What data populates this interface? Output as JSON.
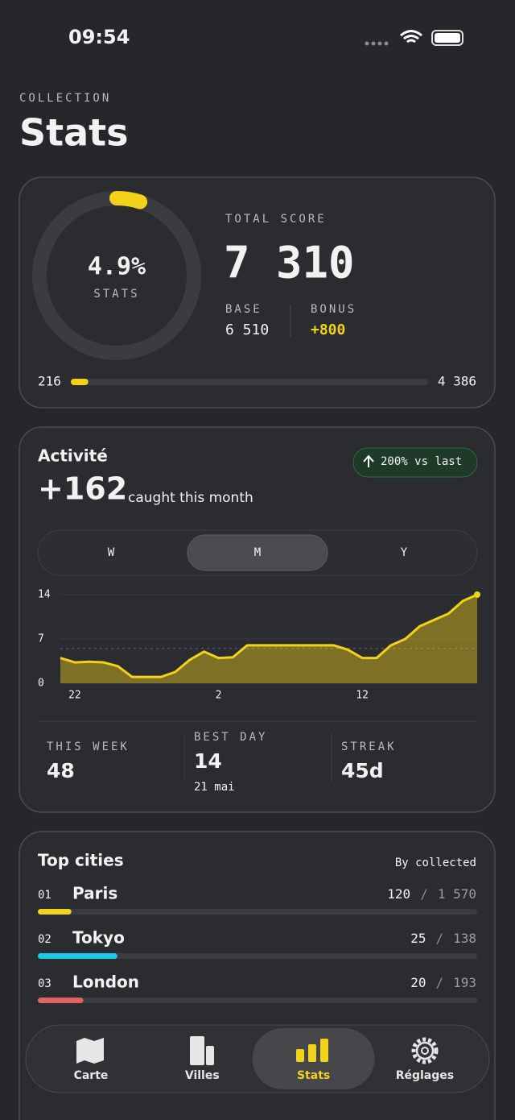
{
  "status": {
    "time": "09:54"
  },
  "header": {
    "eyebrow": "COLLECTION",
    "title": "Stats"
  },
  "score": {
    "progress": {
      "value": 4.9,
      "label": "4.9%"
    },
    "ring_label": "STATS",
    "total_label": "TOTAL SCORE",
    "total": "7 310",
    "base_label": "BASE",
    "base": "6 510",
    "bonus_label": "BONUS",
    "bonus": "+800",
    "range_min": "216",
    "range_max": "4 386"
  },
  "activity": {
    "title": "Activité",
    "count": "+162",
    "caption": "caught this month",
    "badge": "200% vs last",
    "tabs": {
      "items": [
        "W",
        "M",
        "Y"
      ],
      "active": 1
    },
    "chart": {
      "type": "area",
      "categories": [
        null,
        "22",
        null,
        null,
        null,
        null,
        null,
        null,
        null,
        null,
        null,
        "2",
        null,
        null,
        null,
        null,
        null,
        null,
        null,
        null,
        null,
        "12",
        null,
        null,
        null,
        null,
        null,
        null,
        null,
        null
      ],
      "values": [
        4.0,
        3.3,
        3.4,
        3.3,
        2.7,
        1.0,
        1.0,
        1.0,
        1.8,
        3.7,
        5.0,
        4.0,
        4.1,
        6.0,
        6.0,
        6.0,
        6.0,
        6.0,
        6.0,
        6.0,
        5.3,
        4.0,
        4.0,
        6.0,
        7.0,
        9.0,
        10.0,
        11.0,
        13.0,
        14.0
      ],
      "color": "#f2d21a",
      "ylim": [
        0,
        14
      ],
      "yticks": [
        0,
        7,
        14
      ],
      "reference": 5.5
    },
    "stats": [
      {
        "label": "THIS WEEK",
        "value": "48"
      },
      {
        "label": "BEST DAY",
        "value": "14",
        "note": "21 mai"
      },
      {
        "label": "STREAK",
        "value": "45d"
      }
    ]
  },
  "cities": {
    "title": "Top cities",
    "sort": "By collected",
    "separator": "/",
    "rows": [
      {
        "rank": "01",
        "name": "Paris",
        "count": 120,
        "total": {
          "value": 1570,
          "label": "1 570"
        },
        "color": "#f2d21a"
      },
      {
        "rank": "02",
        "name": "Tokyo",
        "count": 25,
        "total": {
          "value": 138,
          "label": "138"
        },
        "color": "#1ec8e8"
      },
      {
        "rank": "03",
        "name": "London",
        "count": 20,
        "total": {
          "value": 193,
          "label": "193"
        },
        "color": "#e06464"
      }
    ]
  },
  "nav": {
    "items": [
      "Carte",
      "Villes",
      "Stats",
      "Réglages"
    ],
    "active": 2,
    "active_color": "#f2d21a"
  }
}
